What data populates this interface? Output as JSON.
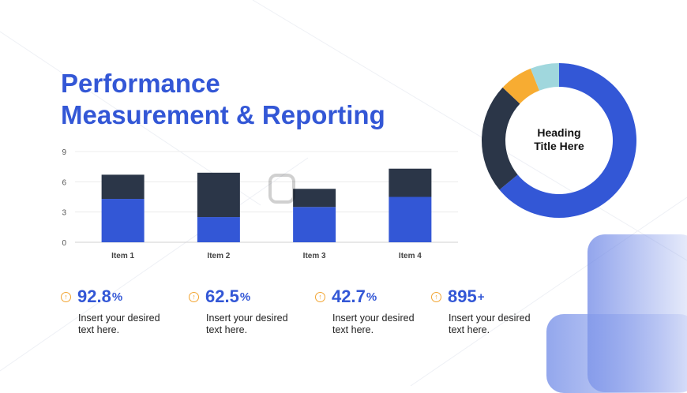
{
  "title": {
    "line1": "Performance",
    "line2": "Measurement & Reporting"
  },
  "colors": {
    "accent_blue": "#3357d6",
    "dark_navy": "#2b3648",
    "orange": "#f7ac32",
    "light_teal": "#a0d7dd",
    "icon_orange": "#f2a532"
  },
  "chart_data": [
    {
      "type": "bar",
      "stacked": true,
      "categories": [
        "Item 1",
        "Item 2",
        "Item 3",
        "Item 4"
      ],
      "series": [
        {
          "values": [
            4.3,
            2.5,
            3.5,
            4.5
          ],
          "color": "#3357d6"
        },
        {
          "values": [
            2.4,
            4.4,
            1.8,
            2.8
          ],
          "color": "#2b3648"
        }
      ],
      "ylim": [
        0,
        9
      ],
      "yticks": [
        0,
        3,
        6,
        9
      ],
      "grid": true,
      "xlabel": "",
      "ylabel": ""
    },
    {
      "type": "pie",
      "donut": true,
      "center_label": [
        "Heading",
        "Title Here"
      ],
      "values": [
        64,
        23,
        7,
        6
      ],
      "colors": [
        "#3357d6",
        "#2b3648",
        "#f7ac32",
        "#a0d7dd"
      ]
    }
  ],
  "stats": [
    {
      "value": "92.8",
      "unit": "%",
      "text": "Insert your desired text here.",
      "icon": "arrow-up-circle-icon"
    },
    {
      "value": "62.5",
      "unit": "%",
      "text": "Insert your desired text here.",
      "icon": "arrow-up-circle-icon"
    },
    {
      "value": "42.7",
      "unit": "%",
      "text": "Insert your desired text here.",
      "icon": "arrow-up-circle-icon"
    },
    {
      "value": "895",
      "unit": "+",
      "text": "Insert your desired text here.",
      "icon": "arrow-up-circle-icon"
    }
  ]
}
